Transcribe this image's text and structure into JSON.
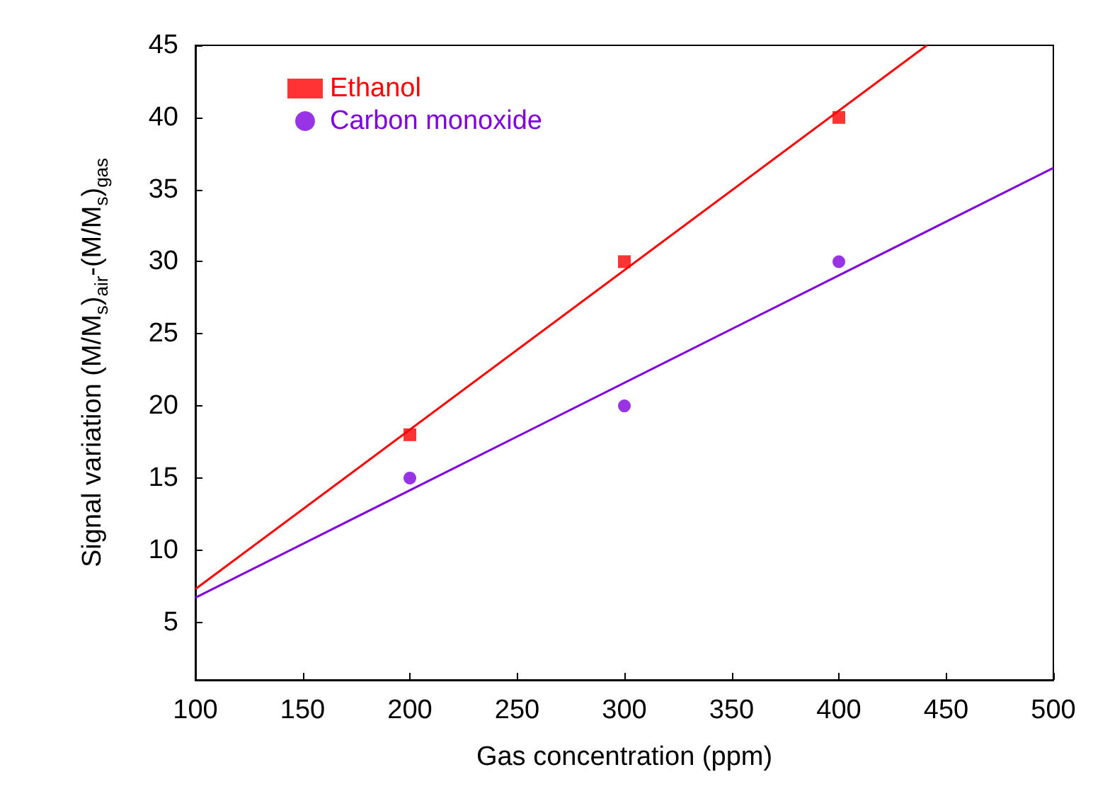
{
  "chart_data": {
    "type": "scatter",
    "xlabel": "Gas concentration (ppm)",
    "ylabel": "Signal variation (M/M$_{s}$)$_{air}$-(M/M$_{s}$)$_{gas}$",
    "xlim": [
      100,
      500
    ],
    "xticks": [
      100,
      150,
      200,
      250,
      300,
      350,
      400,
      450,
      500
    ],
    "ylim": [
      1,
      45
    ],
    "yticks": [
      5,
      10,
      15,
      20,
      25,
      30,
      35,
      40,
      45
    ],
    "grid": false,
    "legend": "top left",
    "series": [
      {
        "name": "Ethanol",
        "color": "#ff0000",
        "marker": "square",
        "x": [
          200,
          300,
          400
        ],
        "values": [
          18,
          30,
          40
        ]
      },
      {
        "name": "Carbon monoxide",
        "color": "#8000e0",
        "marker": "circle",
        "x": [
          200,
          300,
          400
        ],
        "values": [
          15,
          20,
          30
        ]
      },
      {
        "color": "#ff0000",
        "type": "line",
        "marker": "none",
        "x": [
          100,
          441
        ],
        "values": [
          7.3,
          45
        ]
      },
      {
        "color": "#8000e0",
        "type": "line",
        "marker": "none",
        "x": [
          100,
          500
        ],
        "values": [
          6.7,
          36.5
        ]
      }
    ]
  }
}
